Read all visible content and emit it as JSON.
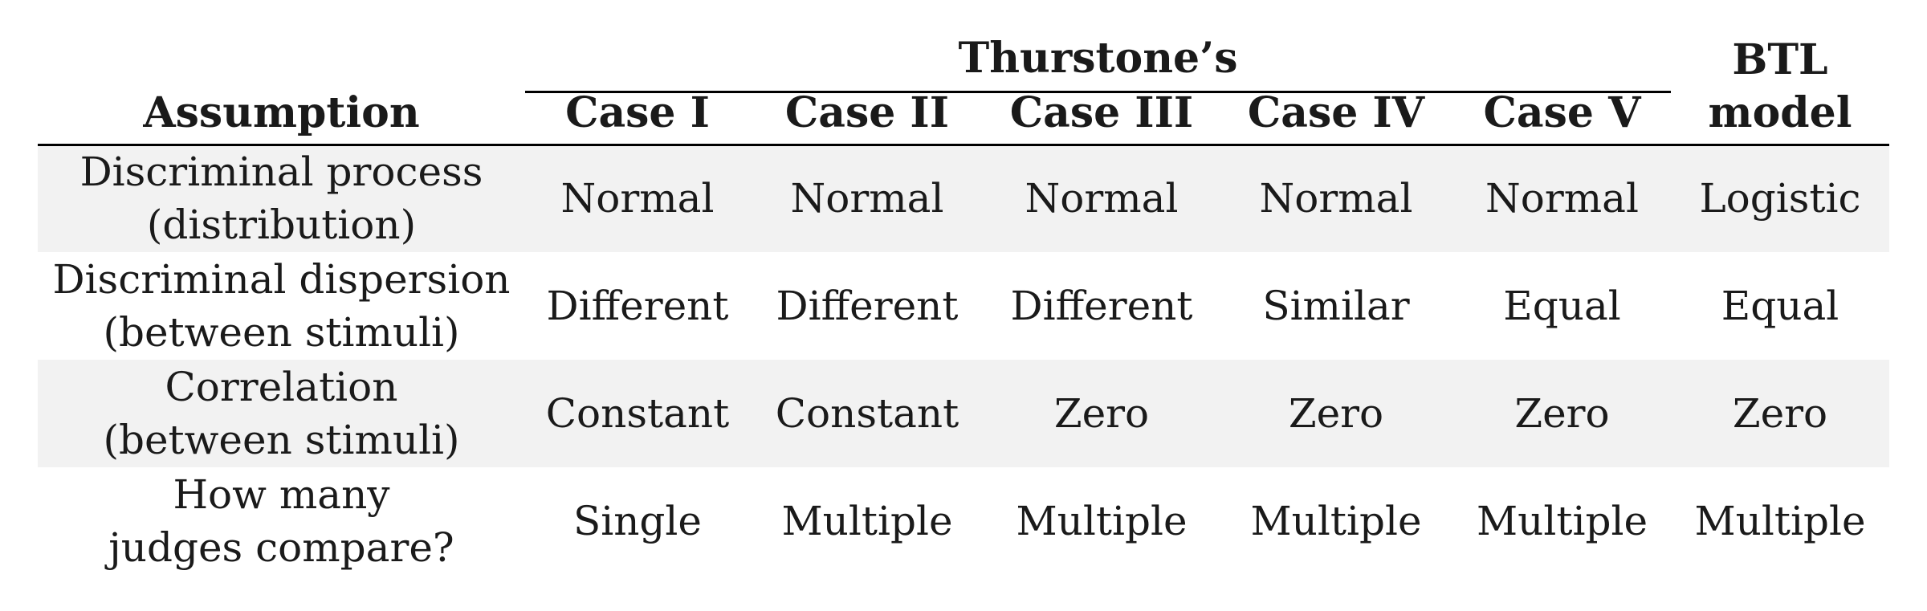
{
  "table": {
    "group_header": "Thurstone’s",
    "btl_header_line1": "BTL",
    "btl_header_line2": "model",
    "columns": [
      "Assumption",
      "Case I",
      "Case II",
      "Case III",
      "Case IV",
      "Case V"
    ],
    "rows": [
      {
        "label_line1": "Discriminal process",
        "label_line2": "(distribution)",
        "cells": [
          "Normal",
          "Normal",
          "Normal",
          "Normal",
          "Normal",
          "Logistic"
        ]
      },
      {
        "label_line1": "Discriminal dispersion",
        "label_line2": "(between stimuli)",
        "cells": [
          "Different",
          "Different",
          "Different",
          "Similar",
          "Equal",
          "Equal"
        ]
      },
      {
        "label_line1": "Correlation",
        "label_line2": "(between stimuli)",
        "cells": [
          "Constant",
          "Constant",
          "Zero",
          "Zero",
          "Zero",
          "Zero"
        ]
      },
      {
        "label_line1": "How many",
        "label_line2": "judges compare?",
        "cells": [
          "Single",
          "Multiple",
          "Multiple",
          "Multiple",
          "Multiple",
          "Multiple"
        ]
      }
    ],
    "shaded_row_color": "#f2f2f2"
  }
}
